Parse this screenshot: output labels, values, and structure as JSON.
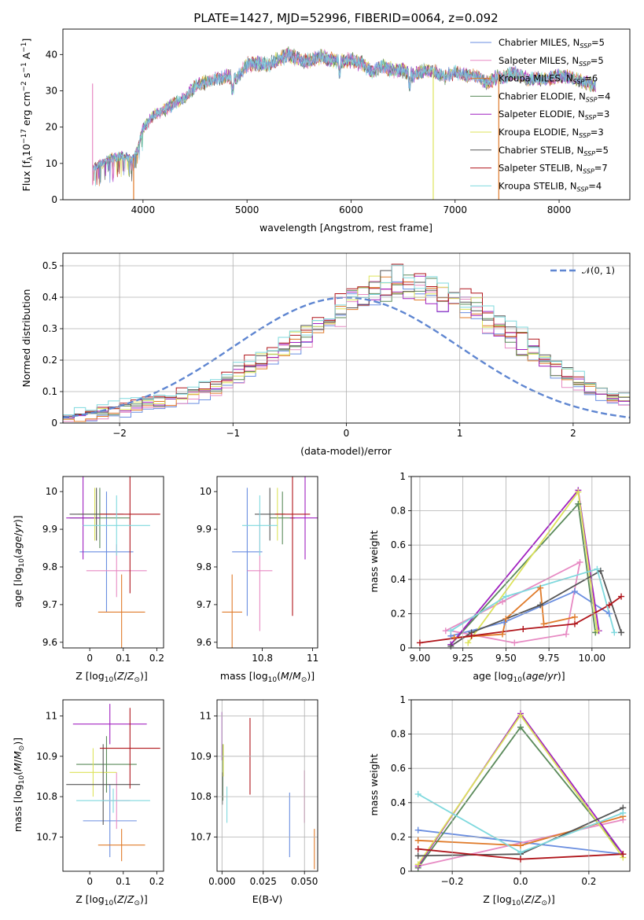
{
  "figure": {
    "title": "PLATE=1427, MJD=52996, FIBERID=0064, z=0.092"
  },
  "colors": {
    "Chabrier MILES": "#6a8ee0",
    "Salpeter MILES": "#e78ac3",
    "Kroupa MILES": "#e07b2a",
    "Chabrier ELODIE": "#5a8a5a",
    "Salpeter ELODIE": "#a020c0",
    "Kroupa ELODIE": "#dde35a",
    "Chabrier STELIB": "#555555",
    "Salpeter STELIB": "#b0151b",
    "Kroupa STELIB": "#7fd9de"
  },
  "chart_data": [
    {
      "id": "spectrum",
      "type": "line",
      "xlabel": "wavelength [Angstrom, rest frame]",
      "ylabel": "Flux [f_λ10^-17 erg cm^-2 s^-1 A^-1]",
      "xlim": [
        3230,
        8680
      ],
      "ylim": [
        0,
        47
      ],
      "xticks": [
        4000,
        5000,
        6000,
        7000,
        8000
      ],
      "yticks": [
        0,
        10,
        20,
        30,
        40
      ],
      "grid": false,
      "legend_position": "upper right",
      "legend": [
        "Chabrier MILES, N_SSP=5",
        "Salpeter MILES, N_SSP=5",
        "Kroupa MILES, N_SSP=6",
        "Chabrier ELODIE, N_SSP=4",
        "Salpeter ELODIE, N_SSP=3",
        "Kroupa ELODIE, N_SSP=3",
        "Chabrier STELIB, N_SSP=5",
        "Salpeter STELIB, N_SSP=7",
        "Kroupa STELIB, N_SSP=4"
      ],
      "envelope": {
        "x": [
          3520,
          3600,
          3700,
          3800,
          3900,
          3950,
          4000,
          4100,
          4200,
          4300,
          4400,
          4500,
          4600,
          4700,
          4800,
          4900,
          5000,
          5100,
          5200,
          5300,
          5400,
          5500,
          5600,
          5700,
          5800,
          5900,
          6000,
          6100,
          6200,
          6300,
          6400,
          6500,
          6600,
          6700,
          6800,
          6900,
          7000,
          7100,
          7200,
          7300,
          7400,
          7500,
          7600,
          7700,
          7800,
          7900,
          8000,
          8100,
          8200,
          8300,
          8350
        ],
        "y": [
          10.5,
          12,
          13.5,
          14,
          13,
          16,
          22,
          25.5,
          27,
          29,
          30.5,
          34,
          35,
          36,
          37,
          36,
          40,
          40.5,
          40,
          41.5,
          43,
          41.5,
          41,
          42.5,
          41.5,
          41,
          41.5,
          40.5,
          38,
          39.5,
          38.5,
          38.5,
          37,
          38.5,
          38,
          36.5,
          38,
          37,
          37,
          35,
          36.5,
          37,
          37.5,
          36,
          36,
          36,
          37,
          36.5,
          35.5,
          34.5,
          34
        ]
      },
      "spikes": [
        {
          "x": 3515,
          "y": 4,
          "series": "Salpeter MILES"
        },
        {
          "x": 3910,
          "y": 0,
          "series": "Kroupa MILES"
        },
        {
          "x": 6790,
          "y": 0,
          "series": "Kroupa ELODIE"
        },
        {
          "x": 7420,
          "y": 0,
          "series": "Kroupa MILES"
        }
      ]
    },
    {
      "id": "residuals",
      "type": "step",
      "xlabel": "(data-model)/error",
      "ylabel": "Normed distribution",
      "xlim": [
        -2.5,
        2.5
      ],
      "ylim": [
        0,
        0.54
      ],
      "xticks": [
        -2,
        -1,
        0,
        1,
        2
      ],
      "xtick_labels": [
        "−2",
        "−1",
        "0",
        "1",
        "2"
      ],
      "yticks": [
        0,
        0.1,
        0.2,
        0.3,
        0.4,
        0.5
      ],
      "grid": true,
      "legend_position": "upper right",
      "reference_curve": {
        "name": "N(0,1)",
        "mean": 0,
        "sigma": 1,
        "color": "#5f86d1",
        "style": "dashed"
      },
      "bin_width": 0.1,
      "bin_start": -2.5,
      "hist_base": [
        0.015,
        0.022,
        0.028,
        0.034,
        0.042,
        0.048,
        0.054,
        0.06,
        0.065,
        0.072,
        0.082,
        0.095,
        0.108,
        0.122,
        0.138,
        0.155,
        0.175,
        0.195,
        0.215,
        0.235,
        0.26,
        0.285,
        0.31,
        0.335,
        0.365,
        0.39,
        0.41,
        0.43,
        0.44,
        0.445,
        0.44,
        0.43,
        0.42,
        0.405,
        0.39,
        0.37,
        0.35,
        0.33,
        0.305,
        0.28,
        0.255,
        0.23,
        0.2,
        0.175,
        0.15,
        0.13,
        0.11,
        0.095,
        0.08,
        0.068,
        0.058,
        0.05,
        0.043,
        0.037,
        0.031,
        0.026,
        0.022,
        0.018,
        0.015,
        0.012
      ]
    },
    {
      "id": "age_vs_Z",
      "type": "errorbar",
      "xlabel": "Z [log10(Z/Z⊙)]",
      "ylabel": "age [log10(age/yr)]",
      "xlim": [
        -0.08,
        0.22
      ],
      "ylim": [
        9.585,
        10.04
      ],
      "xticks": [
        0.0,
        0.1,
        0.2
      ],
      "yticks": [
        9.6,
        9.7,
        9.8,
        9.9,
        10.0
      ],
      "points": [
        {
          "series": "Chabrier MILES",
          "x": 0.05,
          "y": 9.84,
          "xerr": 0.08,
          "yerr": 0.16
        },
        {
          "series": "Salpeter MILES",
          "x": 0.08,
          "y": 9.79,
          "xerr": 0.09,
          "yerr": 0.07
        },
        {
          "series": "Kroupa MILES",
          "x": 0.095,
          "y": 9.68,
          "xerr": 0.07,
          "yerr": 0.1
        },
        {
          "series": "Chabrier ELODIE",
          "x": 0.03,
          "y": 9.93,
          "xerr": 0.09,
          "yerr": 0.08
        },
        {
          "series": "Salpeter ELODIE",
          "x": -0.02,
          "y": 9.93,
          "xerr": 0.05,
          "yerr": 0.11
        },
        {
          "series": "Kroupa ELODIE",
          "x": 0.015,
          "y": 9.94,
          "xerr": 0.05,
          "yerr": 0.07
        },
        {
          "series": "Chabrier STELIB",
          "x": 0.02,
          "y": 9.94,
          "xerr": 0.08,
          "yerr": 0.07
        },
        {
          "series": "Salpeter STELIB",
          "x": 0.12,
          "y": 9.94,
          "xerr": 0.09,
          "yerr": 0.21
        },
        {
          "series": "Kroupa STELIB",
          "x": 0.08,
          "y": 9.91,
          "xerr": 0.1,
          "yerr": 0.08
        }
      ]
    },
    {
      "id": "age_vs_mass",
      "type": "errorbar",
      "xlabel": "mass [log10(M/M⊙)]",
      "ylabel": "",
      "xlim": [
        10.62,
        11.02
      ],
      "ylim": [
        9.585,
        10.04
      ],
      "xticks": [
        10.8,
        11.0
      ],
      "yticks": [
        9.6,
        9.7,
        9.8,
        9.9,
        10.0
      ],
      "points": [
        {
          "series": "Chabrier MILES",
          "x": 10.74,
          "y": 9.84,
          "xerr": 0.06,
          "yerr": 0.17
        },
        {
          "series": "Salpeter MILES",
          "x": 10.79,
          "y": 9.79,
          "xerr": 0.05,
          "yerr": 0.16
        },
        {
          "series": "Kroupa MILES",
          "x": 10.68,
          "y": 9.68,
          "xerr": 0.04,
          "yerr": 0.1
        },
        {
          "series": "Chabrier ELODIE",
          "x": 10.88,
          "y": 9.93,
          "xerr": 0.05,
          "yerr": 0.07
        },
        {
          "series": "Salpeter ELODIE",
          "x": 10.97,
          "y": 9.93,
          "xerr": 0.06,
          "yerr": 0.11
        },
        {
          "series": "Kroupa ELODIE",
          "x": 10.86,
          "y": 9.94,
          "xerr": 0.03,
          "yerr": 0.07
        },
        {
          "series": "Chabrier STELIB",
          "x": 10.83,
          "y": 9.94,
          "xerr": 0.06,
          "yerr": 0.07
        },
        {
          "series": "Salpeter STELIB",
          "x": 10.92,
          "y": 9.94,
          "xerr": 0.07,
          "yerr": 0.27
        },
        {
          "series": "Kroupa STELIB",
          "x": 10.79,
          "y": 9.91,
          "xerr": 0.07,
          "yerr": 0.08
        }
      ]
    },
    {
      "id": "mass_weight_vs_age",
      "type": "line",
      "xlabel": "age [log10(age/yr)]",
      "ylabel": "mass weight",
      "xlim": [
        8.95,
        10.22
      ],
      "ylim": [
        0,
        1.0
      ],
      "xticks": [
        9.0,
        9.25,
        9.5,
        9.75,
        10.0
      ],
      "xtick_labels": [
        "9.00",
        "9.25",
        "9.50",
        "9.75",
        "10.00"
      ],
      "yticks": [
        0.0,
        0.2,
        0.4,
        0.6,
        0.8,
        1.0
      ],
      "grid": true,
      "series": [
        {
          "name": "Chabrier MILES",
          "x": [
            9.18,
            9.49,
            9.9,
            10.1
          ],
          "y": [
            0.07,
            0.15,
            0.33,
            0.2
          ]
        },
        {
          "name": "Salpeter MILES",
          "x": [
            9.18,
            9.55,
            9.85,
            9.93,
            9.48,
            9.15
          ],
          "y": [
            0.1,
            0.03,
            0.08,
            0.5,
            0.27,
            0.1
          ]
        },
        {
          "name": "Kroupa MILES",
          "x": [
            9.2,
            9.48,
            9.5,
            9.7,
            9.72,
            9.9
          ],
          "y": [
            0.06,
            0.08,
            0.17,
            0.35,
            0.14,
            0.18
          ]
        },
        {
          "name": "Chabrier ELODIE",
          "x": [
            9.18,
            9.92,
            10.02
          ],
          "y": [
            0.02,
            0.84,
            0.09
          ]
        },
        {
          "name": "Salpeter ELODIE",
          "x": [
            9.18,
            9.92,
            10.04
          ],
          "y": [
            0.02,
            0.92,
            0.1
          ]
        },
        {
          "name": "Kroupa ELODIE",
          "x": [
            9.28,
            9.92,
            10.03
          ],
          "y": [
            0.03,
            0.91,
            0.1
          ]
        },
        {
          "name": "Chabrier STELIB",
          "x": [
            9.18,
            9.3,
            9.7,
            10.05,
            10.17
          ],
          "y": [
            0.01,
            0.09,
            0.25,
            0.45,
            0.09
          ]
        },
        {
          "name": "Salpeter STELIB",
          "x": [
            9.0,
            9.3,
            9.6,
            9.9,
            10.1,
            10.17
          ],
          "y": [
            0.03,
            0.07,
            0.11,
            0.14,
            0.25,
            0.3
          ]
        },
        {
          "name": "Kroupa STELIB",
          "x": [
            9.18,
            9.5,
            10.03,
            10.13
          ],
          "y": [
            0.1,
            0.3,
            0.46,
            0.09
          ]
        }
      ]
    },
    {
      "id": "mass_vs_Z",
      "type": "errorbar",
      "xlabel": "Z [log10(Z/Z⊙)]",
      "ylabel": "mass [log10(M/M⊙)]",
      "xlim": [
        -0.08,
        0.22
      ],
      "ylim": [
        10.615,
        11.04
      ],
      "xticks": [
        0.0,
        0.1,
        0.2
      ],
      "yticks": [
        10.7,
        10.8,
        10.9,
        11.0
      ],
      "points": [
        {
          "series": "Chabrier MILES",
          "x": 0.06,
          "y": 10.74,
          "xerr": 0.08,
          "yerr": 0.09
        },
        {
          "series": "Salpeter MILES",
          "x": 0.08,
          "y": 10.79,
          "xerr": 0.04,
          "yerr": 0.07
        },
        {
          "series": "Kroupa MILES",
          "x": 0.095,
          "y": 10.68,
          "xerr": 0.07,
          "yerr": 0.04
        },
        {
          "series": "Chabrier ELODIE",
          "x": 0.05,
          "y": 10.88,
          "xerr": 0.09,
          "yerr": 0.07
        },
        {
          "series": "Salpeter ELODIE",
          "x": 0.06,
          "y": 10.98,
          "xerr": 0.11,
          "yerr": 0.05
        },
        {
          "series": "Kroupa ELODIE",
          "x": 0.01,
          "y": 10.86,
          "xerr": 0.07,
          "yerr": 0.06
        },
        {
          "series": "Chabrier STELIB",
          "x": 0.04,
          "y": 10.83,
          "xerr": 0.11,
          "yerr": 0.1
        },
        {
          "series": "Salpeter STELIB",
          "x": 0.12,
          "y": 10.92,
          "xerr": 0.09,
          "yerr": 0.1
        },
        {
          "series": "Kroupa STELIB",
          "x": 0.07,
          "y": 10.79,
          "xerr": 0.11,
          "yerr": 0.03
        }
      ]
    },
    {
      "id": "mass_vs_EBV",
      "type": "errorbar",
      "xlabel": "E(B-V)",
      "ylabel": "",
      "xlim": [
        -0.003,
        0.058
      ],
      "ylim": [
        10.615,
        11.04
      ],
      "xticks": [
        0.0,
        0.025,
        0.05
      ],
      "xtick_labels": [
        "0.000",
        "0.025",
        "0.050"
      ],
      "yticks": [
        10.7,
        10.8,
        10.9,
        11.0
      ],
      "points": [
        {
          "series": "Chabrier MILES",
          "x": 0.041,
          "y": 10.73,
          "xerr": 0,
          "yerr": 0.08
        },
        {
          "series": "Salpeter MILES",
          "x": 0.05,
          "y": 10.8,
          "xerr": 0,
          "yerr": 0.065
        },
        {
          "series": "Kroupa MILES",
          "x": 0.056,
          "y": 10.67,
          "xerr": 0,
          "yerr": 0.05
        },
        {
          "series": "Chabrier ELODIE",
          "x": 0.0005,
          "y": 10.86,
          "xerr": 0,
          "yerr": 0.07
        },
        {
          "series": "Salpeter ELODIE",
          "x": 0.0,
          "y": 10.95,
          "xerr": 0,
          "yerr": 0.06
        },
        {
          "series": "Kroupa ELODIE",
          "x": 0.0008,
          "y": 10.89,
          "xerr": 0,
          "yerr": 0.04
        },
        {
          "series": "Chabrier STELIB",
          "x": 0.0002,
          "y": 10.82,
          "xerr": 0,
          "yerr": 0.04
        },
        {
          "series": "Salpeter STELIB",
          "x": 0.017,
          "y": 10.9,
          "xerr": 0,
          "yerr": 0.095
        },
        {
          "series": "Kroupa STELIB",
          "x": 0.003,
          "y": 10.78,
          "xerr": 0,
          "yerr": 0.045
        }
      ]
    },
    {
      "id": "mass_weight_vs_Z",
      "type": "line",
      "xlabel": "Z [log10(Z/Z⊙)]",
      "ylabel": "mass weight",
      "xlim": [
        -0.32,
        0.32
      ],
      "ylim": [
        0,
        1.0
      ],
      "xticks": [
        -0.2,
        0.0,
        0.2
      ],
      "xtick_labels": [
        "−0.2",
        "0.0",
        "0.2"
      ],
      "yticks": [
        0.0,
        0.2,
        0.4,
        0.6,
        0.8,
        1.0
      ],
      "grid": true,
      "series": [
        {
          "name": "Chabrier MILES",
          "x": [
            -0.3,
            0.3
          ],
          "y": [
            0.24,
            0.1
          ]
        },
        {
          "name": "Salpeter MILES",
          "x": [
            -0.3,
            0.3
          ],
          "y": [
            0.03,
            0.3
          ]
        },
        {
          "name": "Kroupa MILES",
          "x": [
            -0.3,
            0.0,
            0.3
          ],
          "y": [
            0.18,
            0.15,
            0.32
          ]
        },
        {
          "name": "Chabrier ELODIE",
          "x": [
            -0.3,
            0.0,
            0.3
          ],
          "y": [
            0.02,
            0.84,
            0.1
          ]
        },
        {
          "name": "Salpeter ELODIE",
          "x": [
            -0.3,
            0.0,
            0.3
          ],
          "y": [
            0.03,
            0.92,
            0.1
          ]
        },
        {
          "name": "Kroupa ELODIE",
          "x": [
            -0.3,
            0.0,
            0.3
          ],
          "y": [
            0.04,
            0.91,
            0.08
          ]
        },
        {
          "name": "Chabrier STELIB",
          "x": [
            -0.3,
            0.0,
            0.3
          ],
          "y": [
            0.09,
            0.1,
            0.37
          ]
        },
        {
          "name": "Salpeter STELIB",
          "x": [
            -0.3,
            0.0,
            0.3
          ],
          "y": [
            0.13,
            0.07,
            0.1
          ]
        },
        {
          "name": "Kroupa STELIB",
          "x": [
            -0.3,
            0.0,
            0.3
          ],
          "y": [
            0.45,
            0.11,
            0.34
          ]
        }
      ]
    }
  ]
}
